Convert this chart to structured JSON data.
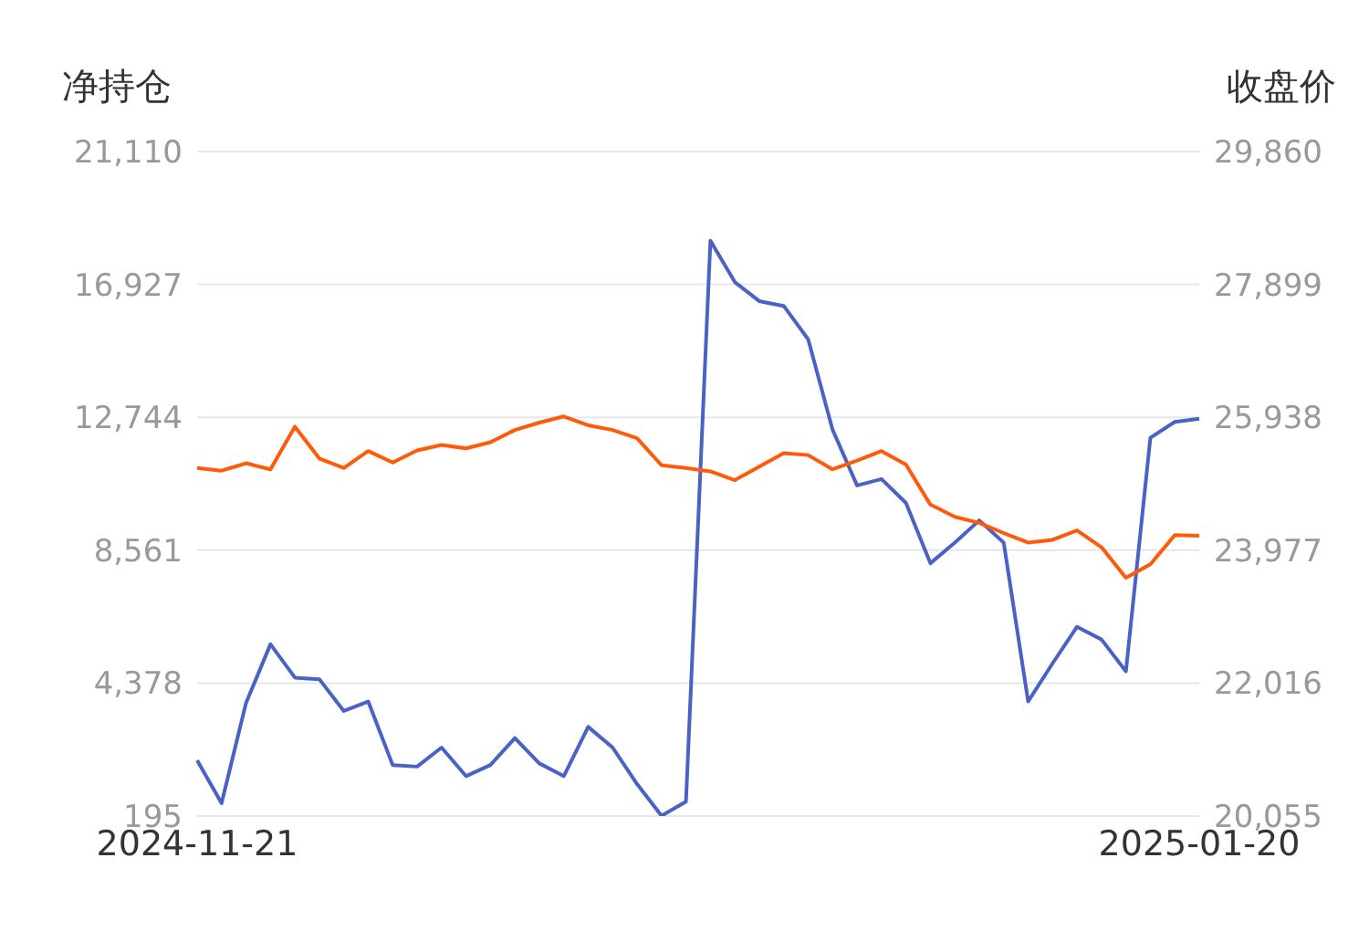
{
  "chart_data": {
    "type": "line",
    "ylabel": "净持仓",
    "y2label": "收盘价",
    "categories": [
      "2024-11-21",
      null,
      null,
      null,
      null,
      null,
      null,
      null,
      null,
      null,
      null,
      null,
      null,
      null,
      null,
      null,
      null,
      null,
      null,
      null,
      null,
      null,
      null,
      null,
      null,
      null,
      null,
      null,
      null,
      null,
      null,
      null,
      null,
      null,
      null,
      null,
      null,
      null,
      null,
      null,
      null,
      "2025-01-20"
    ],
    "series": [
      {
        "color": "#4a62c4",
        "values": [
          1950,
          600,
          3750,
          5600,
          4550,
          4500,
          3500,
          3800,
          1800,
          1750,
          2350,
          1450,
          1800,
          2650,
          1850,
          1450,
          3000,
          2350,
          1200,
          200,
          650,
          18300,
          17000,
          16400,
          16250,
          15200,
          12350,
          10600,
          10800,
          10050,
          8150,
          8800,
          9500,
          8800,
          3800,
          5000,
          6150,
          5750,
          4750,
          12100,
          12600,
          12700
        ]
      },
      {
        "color": "#ff5a0a",
        "axis": "y2",
        "values": [
          25190,
          25150,
          25260,
          25170,
          25800,
          25330,
          25190,
          25440,
          25270,
          25450,
          25530,
          25480,
          25570,
          25750,
          25860,
          25950,
          25820,
          25750,
          25630,
          25230,
          25190,
          25140,
          25010,
          25210,
          25410,
          25380,
          25170,
          25300,
          25440,
          25240,
          24650,
          24470,
          24380,
          24230,
          24090,
          24130,
          24270,
          24020,
          23570,
          23770,
          24200,
          24190
        ]
      }
    ],
    "ylim": [
      195,
      21110
    ],
    "yticks": [
      {
        "value": 195,
        "label": "195"
      },
      {
        "value": 4378,
        "label": "4,378"
      },
      {
        "value": 8561,
        "label": "8,561"
      },
      {
        "value": 12744,
        "label": "12,744"
      },
      {
        "value": 16927,
        "label": "16,927"
      },
      {
        "value": 21110,
        "label": "21,110"
      }
    ],
    "y2lim": [
      20055,
      29860
    ],
    "y2ticks": [
      {
        "value": 20055,
        "label": "20,055"
      },
      {
        "value": 22016,
        "label": "22,016"
      },
      {
        "value": 23977,
        "label": "23,977"
      },
      {
        "value": 25938,
        "label": "25,938"
      },
      {
        "value": 27899,
        "label": "27,899"
      },
      {
        "value": 29860,
        "label": "29,860"
      }
    ],
    "grid": "y",
    "marker": "none",
    "line_style": "solid"
  }
}
